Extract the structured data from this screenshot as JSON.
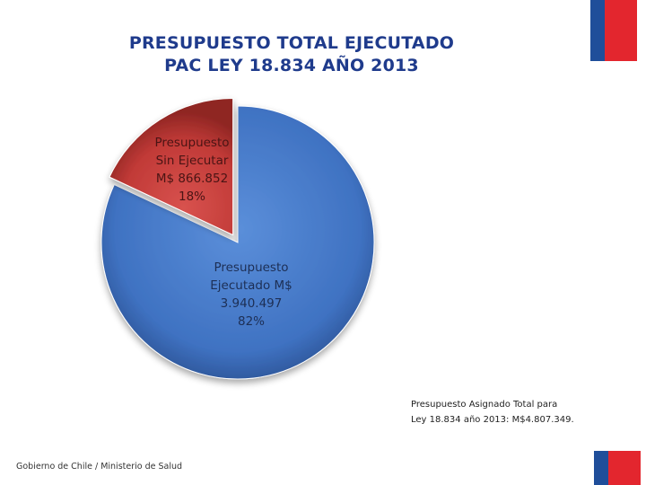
{
  "title_line1": "PRESUPUESTO TOTAL EJECUTADO",
  "title_line2": "PAC LEY 18.834 AÑO 2013",
  "chart_data": {
    "type": "pie",
    "title": "PRESUPUESTO TOTAL EJECUTADO PAC LEY 18.834 AÑO 2013",
    "slices": [
      {
        "label_lines": [
          "Presupuesto",
          "Ejecutado M$",
          "3.940.497",
          "82%"
        ],
        "value": 3940497,
        "percent": 82,
        "color": "#4478c8"
      },
      {
        "label_lines": [
          "Presupuesto",
          "Sin Ejecutar",
          "M$ 866.852",
          "18%"
        ],
        "value": 866852,
        "percent": 18,
        "color": "#c9423f"
      }
    ]
  },
  "total_note": {
    "line1": "Presupuesto Asignado Total para",
    "line2": "Ley 18.834 año 2013: M$4.807.349."
  },
  "footer": "Gobierno de Chile / Ministerio de Salud",
  "colors": {
    "title": "#1f3b8c",
    "flag_blue": "#1f4e9a",
    "flag_red": "#e3262e"
  }
}
